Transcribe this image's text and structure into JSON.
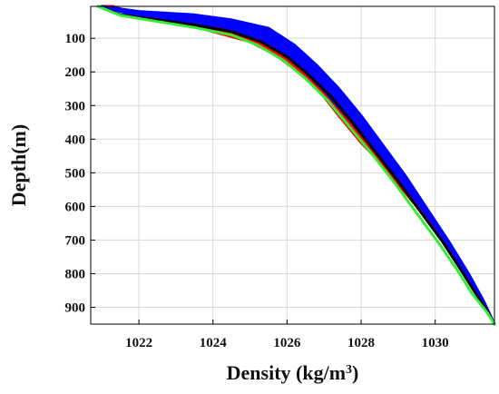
{
  "chart_data": {
    "type": "line",
    "xlabel": "Density (kg/m",
    "xlabel_sup": "3",
    "xlabel_close": ")",
    "ylabel": "Depth(m)",
    "xlim": [
      1020.7,
      1031.6
    ],
    "ylim": [
      950,
      5
    ],
    "y_inverted": true,
    "grid": true,
    "xticks": [
      1022,
      1024,
      1026,
      1028,
      1030
    ],
    "yticks": [
      100,
      200,
      300,
      400,
      500,
      600,
      700,
      800,
      900
    ],
    "colors": {
      "red_band": "#ff0000",
      "blue_band": "#0000ff",
      "black_line": "#000000",
      "green_line": "#33ee33",
      "grid": "#d9d9d9"
    },
    "bands": [
      {
        "color_key": "red_band",
        "outer": [
          [
            1021.3,
            5
          ],
          [
            1022.0,
            30
          ],
          [
            1023.0,
            50
          ],
          [
            1024.0,
            80
          ],
          [
            1025.0,
            110
          ],
          [
            1025.7,
            150
          ],
          [
            1026.3,
            200
          ],
          [
            1026.9,
            260
          ],
          [
            1027.4,
            330
          ],
          [
            1028.0,
            410
          ],
          [
            1028.6,
            480
          ],
          [
            1029.2,
            560
          ],
          [
            1029.8,
            640
          ],
          [
            1030.4,
            730
          ],
          [
            1030.9,
            820
          ],
          [
            1031.3,
            890
          ],
          [
            1031.6,
            950
          ]
        ],
        "inner": [
          [
            1021.0,
            5
          ],
          [
            1021.8,
            28
          ],
          [
            1022.8,
            40
          ],
          [
            1023.8,
            55
          ],
          [
            1024.8,
            80
          ],
          [
            1025.5,
            115
          ],
          [
            1026.2,
            165
          ],
          [
            1026.8,
            220
          ],
          [
            1027.4,
            290
          ],
          [
            1028.0,
            375
          ],
          [
            1028.6,
            460
          ],
          [
            1029.2,
            550
          ],
          [
            1029.8,
            635
          ],
          [
            1030.4,
            720
          ],
          [
            1030.9,
            815
          ],
          [
            1031.3,
            890
          ],
          [
            1031.6,
            950
          ]
        ]
      },
      {
        "color_key": "blue_band",
        "outer": [
          [
            1021.0,
            5
          ],
          [
            1022.0,
            20
          ],
          [
            1023.5,
            30
          ],
          [
            1024.5,
            45
          ],
          [
            1025.5,
            70
          ],
          [
            1026.2,
            120
          ],
          [
            1026.8,
            180
          ],
          [
            1027.4,
            250
          ],
          [
            1028.0,
            330
          ],
          [
            1028.6,
            420
          ],
          [
            1029.2,
            510
          ],
          [
            1029.8,
            610
          ],
          [
            1030.4,
            710
          ],
          [
            1030.9,
            800
          ],
          [
            1031.3,
            880
          ],
          [
            1031.6,
            950
          ]
        ],
        "inner": [
          [
            1021.0,
            5
          ],
          [
            1022.0,
            35
          ],
          [
            1023.2,
            50
          ],
          [
            1024.2,
            65
          ],
          [
            1025.0,
            90
          ],
          [
            1025.7,
            130
          ],
          [
            1026.4,
            190
          ],
          [
            1027.0,
            255
          ],
          [
            1027.6,
            330
          ],
          [
            1028.2,
            410
          ],
          [
            1028.8,
            490
          ],
          [
            1029.4,
            570
          ],
          [
            1030.0,
            660
          ],
          [
            1030.5,
            740
          ],
          [
            1031.0,
            830
          ],
          [
            1031.3,
            890
          ],
          [
            1031.6,
            950
          ]
        ]
      }
    ],
    "series": [
      {
        "color_key": "black_line",
        "x": [
          1020.9,
          1021.5,
          1022.5,
          1023.5,
          1024.5,
          1025.3,
          1026.0,
          1026.6,
          1027.2,
          1027.8,
          1028.4,
          1029.0,
          1029.6,
          1030.2,
          1030.7,
          1031.1,
          1031.4,
          1031.6
        ],
        "y": [
          5,
          30,
          45,
          60,
          80,
          110,
          155,
          210,
          275,
          355,
          440,
          525,
          615,
          705,
          790,
          860,
          910,
          950
        ]
      },
      {
        "color_key": "green_line",
        "x": [
          1020.9,
          1021.5,
          1022.5,
          1023.5,
          1024.5,
          1025.2,
          1025.9,
          1026.5,
          1027.1,
          1027.7,
          1028.3,
          1028.9,
          1029.5,
          1030.1,
          1030.6,
          1031.0,
          1031.4,
          1031.6
        ],
        "y": [
          5,
          32,
          50,
          68,
          90,
          120,
          165,
          220,
          285,
          365,
          445,
          530,
          620,
          710,
          790,
          860,
          915,
          950
        ]
      }
    ]
  }
}
